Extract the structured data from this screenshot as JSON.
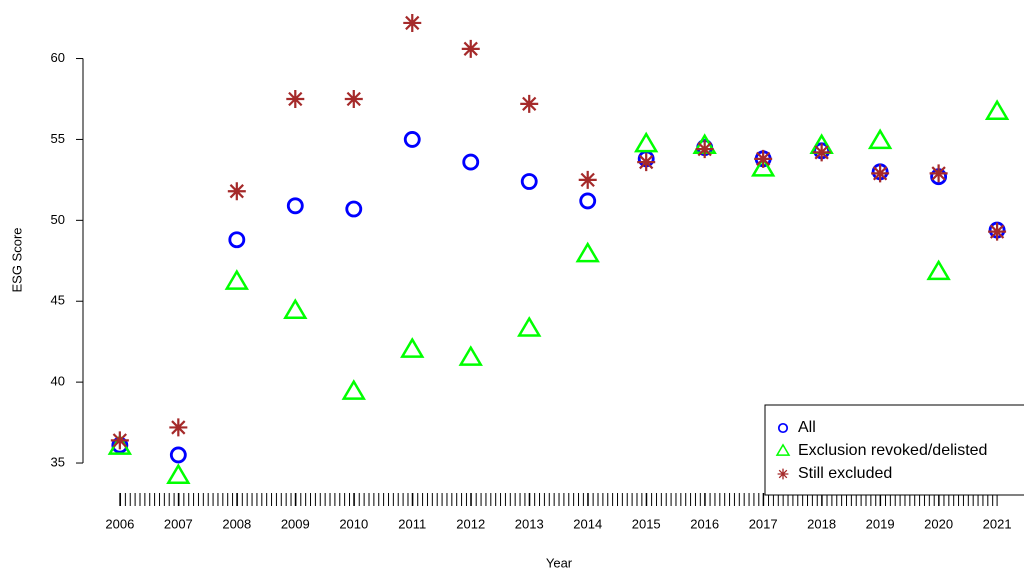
{
  "chart_data": {
    "type": "scatter",
    "x_label": "Year",
    "y_label": "ESG Score",
    "x": [
      2006,
      2007,
      2008,
      2009,
      2010,
      2011,
      2012,
      2013,
      2014,
      2015,
      2016,
      2017,
      2018,
      2019,
      2020,
      2021
    ],
    "series": [
      {
        "name": "All",
        "color": "#0000ff",
        "marker": "circle",
        "values": [
          36.1,
          35.5,
          48.8,
          50.9,
          50.7,
          55.0,
          53.6,
          52.4,
          51.2,
          53.8,
          54.5,
          53.8,
          54.3,
          53.0,
          52.7,
          49.4
        ]
      },
      {
        "name": "Exclusion revoked/delisted",
        "color": "#00ff00",
        "marker": "triangle",
        "values": [
          36.0,
          34.2,
          46.2,
          44.4,
          39.4,
          42.0,
          41.5,
          43.3,
          47.9,
          54.7,
          54.6,
          53.2,
          54.6,
          54.9,
          46.8,
          56.7
        ]
      },
      {
        "name": "Still excluded",
        "color": "#a52a2a",
        "marker": "asterisk",
        "values": [
          36.4,
          37.2,
          51.8,
          57.5,
          57.5,
          62.2,
          60.6,
          57.2,
          52.5,
          53.6,
          54.4,
          53.8,
          54.2,
          52.9,
          52.9,
          49.3
        ]
      }
    ],
    "xlim": [
      2005.37,
      2021.46
    ],
    "ylim": [
      32.9,
      63
    ],
    "xticks": [
      2006,
      2007,
      2008,
      2009,
      2010,
      2011,
      2012,
      2013,
      2014,
      2015,
      2016,
      2017,
      2018,
      2019,
      2020,
      2021
    ],
    "yticks": [
      35,
      40,
      45,
      50,
      55,
      60
    ],
    "legend": "bottomright"
  }
}
